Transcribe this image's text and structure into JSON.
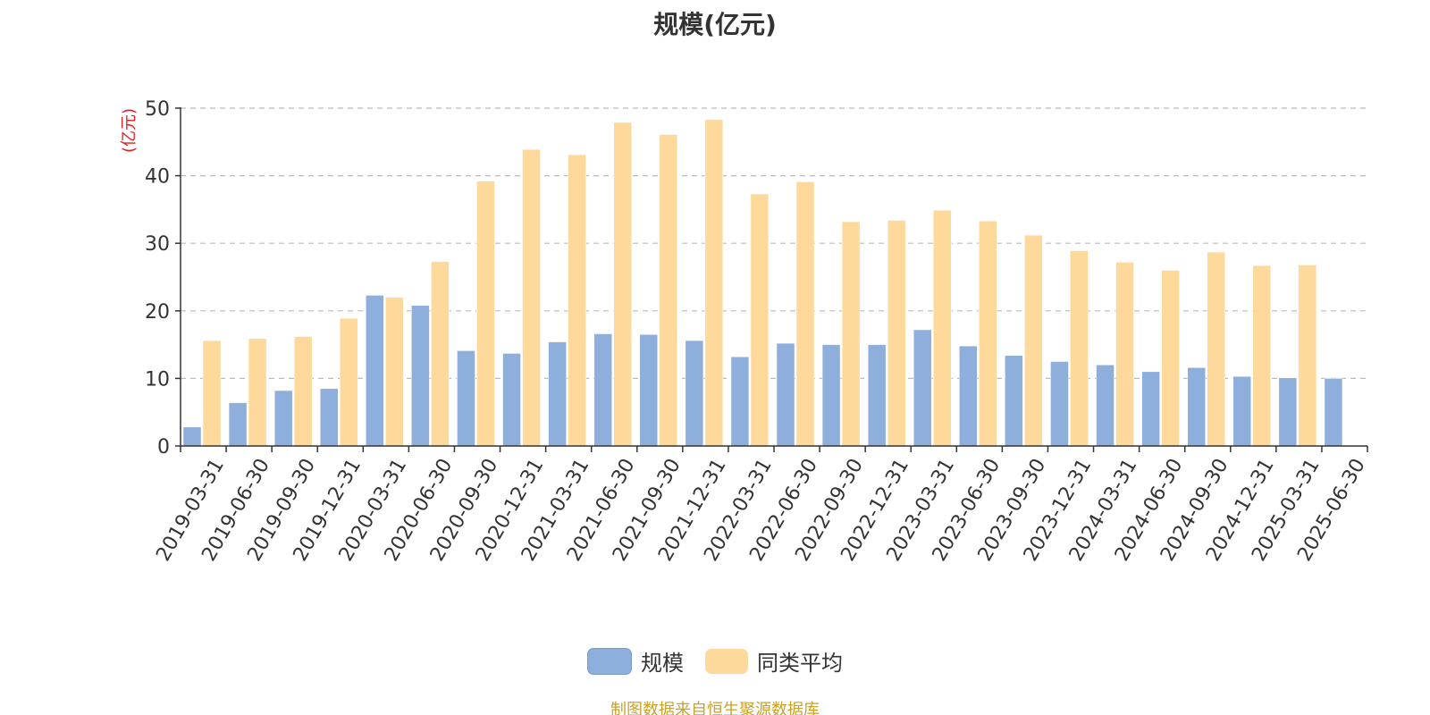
{
  "colors": {
    "series_scale": "#8eaedc",
    "series_avg": "#ffd99b",
    "ylabel": "#e02020",
    "source": "#c9a227",
    "grid": "#bbbbbb",
    "axis": "#333333"
  },
  "source_note": "制图数据来自恒生聚源数据库",
  "chart_data": {
    "type": "bar",
    "title": "规模(亿元)",
    "xlabel": "",
    "ylabel": "(亿元)",
    "ylim": [
      0,
      50
    ],
    "yticks": [
      0,
      10,
      20,
      30,
      40,
      50
    ],
    "grid": true,
    "legend_position": "bottom",
    "categories": [
      "2019-03-31",
      "2019-06-30",
      "2019-09-30",
      "2019-12-31",
      "2020-03-31",
      "2020-06-30",
      "2020-09-30",
      "2020-12-31",
      "2021-03-31",
      "2021-06-30",
      "2021-09-30",
      "2021-12-31",
      "2022-03-31",
      "2022-06-30",
      "2022-09-30",
      "2022-12-31",
      "2023-03-31",
      "2023-06-30",
      "2023-09-30",
      "2023-12-31",
      "2024-03-31",
      "2024-06-30",
      "2024-09-30",
      "2024-12-31",
      "2025-03-31",
      "2025-06-30"
    ],
    "series": [
      {
        "name": "规模",
        "values": [
          2.8,
          6.4,
          8.2,
          8.5,
          22.3,
          20.8,
          14.1,
          13.7,
          15.4,
          16.6,
          16.5,
          15.6,
          13.2,
          15.2,
          15.0,
          15.0,
          17.2,
          14.8,
          13.4,
          12.5,
          12.0,
          11.0,
          11.6,
          10.3,
          10.1,
          10.0
        ]
      },
      {
        "name": "同类平均",
        "values": [
          15.6,
          15.9,
          16.2,
          18.9,
          22.0,
          27.3,
          39.2,
          43.9,
          43.1,
          47.9,
          46.1,
          48.3,
          37.3,
          39.1,
          33.2,
          33.4,
          34.9,
          33.3,
          31.2,
          28.9,
          27.2,
          26.0,
          28.7,
          26.7,
          26.8,
          null
        ]
      }
    ]
  }
}
